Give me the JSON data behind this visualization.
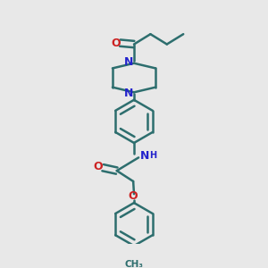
{
  "bg_color": "#e8e8e8",
  "bond_color": "#2d6e6e",
  "bond_width": 1.8,
  "N_color": "#2222cc",
  "O_color": "#cc2222",
  "text_color": "#2d6e6e",
  "fig_w": 3.0,
  "fig_h": 3.0,
  "dpi": 100,
  "xlim": [
    0.15,
    0.85
  ],
  "ylim": [
    0.02,
    0.98
  ]
}
